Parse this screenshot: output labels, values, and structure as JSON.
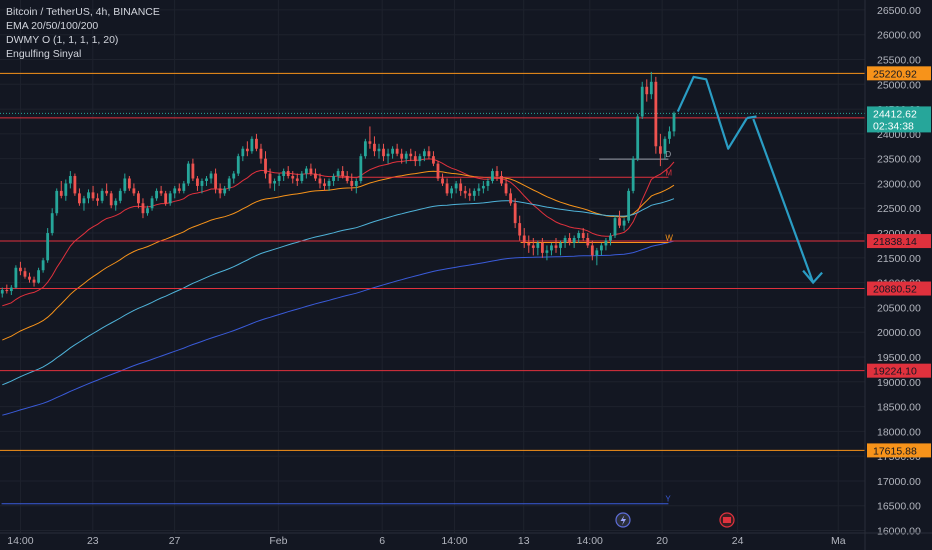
{
  "legend": {
    "symbol": "Bitcoin / TetherUS, 4h, BINANCE",
    "ema": "EMA 20/50/100/200",
    "dwmy": "DWMY O (1, 1, 1, 1, 20)",
    "engulfing": "Engulfing Sinyal"
  },
  "colors": {
    "background": "#131722",
    "up": "#26a69a",
    "down": "#ef5350",
    "orange": "#f7931a",
    "red_line": "#e0313d",
    "blue_line": "#3a5bd9",
    "current_price": "#26a69a",
    "arrow": "#2a9dc4"
  },
  "chart_data": {
    "type": "candlestick",
    "y_range": [
      15950,
      26700
    ],
    "y_ticks": [
      16000,
      16500,
      17000,
      17500,
      18000,
      18500,
      19000,
      19500,
      20000,
      20500,
      21000,
      21500,
      22000,
      22500,
      23000,
      23500,
      24000,
      24500,
      25000,
      25500,
      26000,
      26500
    ],
    "y_tick_labels": [
      "16000.00",
      "16500.00",
      "17000.00",
      "17500.00",
      "18000.00",
      "18500.00",
      "19000.00",
      "19500.00",
      "20000.00",
      "20500.00",
      "21000.00",
      "21500.00",
      "22000.00",
      "22500.00",
      "23000.00",
      "23500.00",
      "24000.00",
      "24500.00",
      "25000.00",
      "25500.00",
      "26000.00",
      "26500.00"
    ],
    "x_labels": [
      {
        "label": "14:00",
        "bar": 6
      },
      {
        "label": "23",
        "bar": 29
      },
      {
        "label": "27",
        "bar": 55
      },
      {
        "label": "Feb",
        "bar": 88
      },
      {
        "label": "6",
        "bar": 121
      },
      {
        "label": "14:00",
        "bar": 144
      },
      {
        "label": "13",
        "bar": 166
      },
      {
        "label": "14:00",
        "bar": 187
      },
      {
        "label": "20",
        "bar": 210
      },
      {
        "label": "24",
        "bar": 234
      },
      {
        "label": "Ma",
        "bar": 266
      }
    ],
    "bar_count_visible": 275,
    "support_resistance": [
      {
        "price": 25220.92,
        "label": "25220.92",
        "color": "#f7931a"
      },
      {
        "price": 24322.78,
        "label": "24322.78",
        "color": "#e0313d"
      },
      {
        "price": 21838.14,
        "label": "21838.14",
        "color": "#e0313d"
      },
      {
        "price": 20880.52,
        "label": "20880.52",
        "color": "#e0313d"
      },
      {
        "price": 19224.1,
        "label": "19224.10",
        "color": "#e0313d"
      },
      {
        "price": 17615.88,
        "label": "17615.88",
        "color": "#f7931a"
      }
    ],
    "current_price": {
      "price": 24412.62,
      "label": "24412.62",
      "countdown": "02:34:38"
    },
    "dwmy_levels": [
      {
        "tag": "D",
        "price": 23490,
        "from_bar": 190,
        "to_bar": 212,
        "color": "#9aa0aa"
      },
      {
        "tag": "M",
        "price": 23125,
        "from_bar": 107,
        "to_bar": 212,
        "color": "#e0313d"
      },
      {
        "tag": "W",
        "price": 21810,
        "from_bar": 165,
        "to_bar": 212,
        "color": "#f7931a"
      },
      {
        "tag": "Y",
        "price": 16540,
        "from_bar": 0,
        "to_bar": 212,
        "color": "#3a5bd9"
      }
    ],
    "candles_ohlc": [
      [
        20780,
        20900,
        20700,
        20850
      ],
      [
        20850,
        20960,
        20780,
        20830
      ],
      [
        20830,
        20950,
        20750,
        20900
      ],
      [
        20900,
        21350,
        20880,
        21300
      ],
      [
        21300,
        21420,
        21150,
        21230
      ],
      [
        21230,
        21300,
        21080,
        21120
      ],
      [
        21120,
        21200,
        21000,
        21060
      ],
      [
        21060,
        21120,
        20920,
        21000
      ],
      [
        21000,
        21300,
        20980,
        21250
      ],
      [
        21250,
        21500,
        21200,
        21450
      ],
      [
        21450,
        22100,
        21400,
        22000
      ],
      [
        22000,
        22500,
        21950,
        22400
      ],
      [
        22400,
        22900,
        22350,
        22850
      ],
      [
        22850,
        23050,
        22700,
        22750
      ],
      [
        22750,
        23080,
        22650,
        23000
      ],
      [
        23000,
        23250,
        22900,
        23150
      ],
      [
        23150,
        23200,
        22750,
        22800
      ],
      [
        22800,
        22900,
        22550,
        22600
      ],
      [
        22600,
        22750,
        22450,
        22700
      ],
      [
        22700,
        22880,
        22600,
        22820
      ],
      [
        22820,
        22950,
        22650,
        22700
      ],
      [
        22700,
        22800,
        22550,
        22650
      ],
      [
        22650,
        22900,
        22600,
        22850
      ],
      [
        22850,
        23000,
        22750,
        22800
      ],
      [
        22800,
        22850,
        22500,
        22560
      ],
      [
        22560,
        22700,
        22450,
        22650
      ],
      [
        22650,
        22900,
        22600,
        22850
      ],
      [
        22850,
        23200,
        22800,
        23100
      ],
      [
        23100,
        23150,
        22850,
        22900
      ],
      [
        22900,
        23000,
        22750,
        22800
      ],
      [
        22800,
        22850,
        22500,
        22600
      ],
      [
        22600,
        22700,
        22300,
        22400
      ],
      [
        22400,
        22550,
        22350,
        22500
      ],
      [
        22500,
        22750,
        22450,
        22700
      ],
      [
        22700,
        22900,
        22650,
        22850
      ],
      [
        22850,
        22950,
        22750,
        22800
      ],
      [
        22800,
        22850,
        22550,
        22600
      ],
      [
        22600,
        22850,
        22550,
        22800
      ],
      [
        22800,
        22950,
        22700,
        22900
      ],
      [
        22900,
        23000,
        22800,
        22850
      ],
      [
        22850,
        23050,
        22800,
        23000
      ],
      [
        23000,
        23450,
        22950,
        23400
      ],
      [
        23400,
        23500,
        23050,
        23100
      ],
      [
        23100,
        23150,
        22850,
        22950
      ],
      [
        22950,
        23100,
        22800,
        23050
      ],
      [
        23050,
        23150,
        22950,
        23100
      ],
      [
        23100,
        23250,
        23000,
        23200
      ],
      [
        23200,
        23300,
        22800,
        22900
      ],
      [
        22900,
        23000,
        22700,
        22800
      ],
      [
        22800,
        22950,
        22750,
        22900
      ],
      [
        22900,
        23150,
        22850,
        23100
      ],
      [
        23100,
        23250,
        23000,
        23200
      ],
      [
        23200,
        23600,
        23150,
        23550
      ],
      [
        23550,
        23750,
        23450,
        23700
      ],
      [
        23700,
        23850,
        23550,
        23650
      ],
      [
        23650,
        23950,
        23600,
        23900
      ],
      [
        23900,
        24000,
        23650,
        23700
      ],
      [
        23700,
        23800,
        23400,
        23500
      ],
      [
        23500,
        23650,
        23100,
        23200
      ],
      [
        23200,
        23300,
        22900,
        23000
      ],
      [
        23000,
        23100,
        22850,
        23050
      ],
      [
        23050,
        23200,
        22950,
        23150
      ],
      [
        23150,
        23300,
        23050,
        23250
      ],
      [
        23250,
        23350,
        23100,
        23150
      ],
      [
        23150,
        23250,
        23000,
        23100
      ],
      [
        23100,
        23200,
        22950,
        23050
      ],
      [
        23050,
        23250,
        23000,
        23200
      ],
      [
        23200,
        23350,
        23100,
        23300
      ],
      [
        23300,
        23400,
        23150,
        23200
      ],
      [
        23200,
        23300,
        23050,
        23100
      ],
      [
        23100,
        23200,
        22900,
        23000
      ],
      [
        23000,
        23100,
        22850,
        22950
      ],
      [
        22950,
        23100,
        22850,
        23050
      ],
      [
        23050,
        23200,
        22950,
        23150
      ],
      [
        23150,
        23300,
        23050,
        23250
      ],
      [
        23250,
        23350,
        23100,
        23150
      ],
      [
        23150,
        23250,
        23000,
        23050
      ],
      [
        23050,
        23200,
        22850,
        22950
      ],
      [
        22950,
        23100,
        22800,
        23050
      ],
      [
        23050,
        23600,
        23000,
        23550
      ],
      [
        23550,
        23900,
        23500,
        23850
      ],
      [
        23850,
        24150,
        23700,
        23800
      ],
      [
        23800,
        23950,
        23550,
        23650
      ],
      [
        23650,
        23800,
        23500,
        23700
      ],
      [
        23700,
        23800,
        23450,
        23550
      ],
      [
        23550,
        23700,
        23400,
        23600
      ],
      [
        23600,
        23750,
        23500,
        23700
      ],
      [
        23700,
        23800,
        23550,
        23600
      ],
      [
        23600,
        23700,
        23400,
        23500
      ],
      [
        23500,
        23650,
        23400,
        23600
      ],
      [
        23600,
        23700,
        23450,
        23550
      ],
      [
        23550,
        23650,
        23350,
        23450
      ],
      [
        23450,
        23600,
        23350,
        23550
      ],
      [
        23550,
        23700,
        23450,
        23650
      ],
      [
        23650,
        23750,
        23500,
        23550
      ],
      [
        23550,
        23650,
        23350,
        23400
      ],
      [
        23400,
        23450,
        23050,
        23100
      ],
      [
        23100,
        23200,
        22950,
        23000
      ],
      [
        23000,
        23100,
        22750,
        22800
      ],
      [
        22800,
        22950,
        22700,
        22900
      ],
      [
        22900,
        23050,
        22800,
        23000
      ],
      [
        23000,
        23100,
        22750,
        22850
      ],
      [
        22850,
        22950,
        22700,
        22800
      ],
      [
        22800,
        22900,
        22650,
        22750
      ],
      [
        22750,
        22900,
        22650,
        22850
      ],
      [
        22850,
        23000,
        22750,
        22900
      ],
      [
        22900,
        23050,
        22800,
        22950
      ],
      [
        22950,
        23100,
        22850,
        23050
      ],
      [
        23050,
        23300,
        23000,
        23250
      ],
      [
        23250,
        23350,
        23050,
        23150
      ],
      [
        23150,
        23250,
        22950,
        23000
      ],
      [
        23000,
        23100,
        22750,
        22800
      ],
      [
        22800,
        22900,
        22550,
        22600
      ],
      [
        22600,
        22700,
        22100,
        22200
      ],
      [
        22200,
        22350,
        21850,
        21950
      ],
      [
        21950,
        22100,
        21700,
        21800
      ],
      [
        21800,
        21950,
        21600,
        21750
      ],
      [
        21750,
        21900,
        21550,
        21700
      ],
      [
        21700,
        21850,
        21550,
        21800
      ],
      [
        21800,
        21900,
        21500,
        21600
      ],
      [
        21600,
        21750,
        21450,
        21650
      ],
      [
        21650,
        21800,
        21550,
        21750
      ],
      [
        21750,
        21900,
        21600,
        21700
      ],
      [
        21700,
        21850,
        21550,
        21800
      ],
      [
        21800,
        21950,
        21700,
        21900
      ],
      [
        21900,
        22000,
        21750,
        21800
      ],
      [
        21800,
        21950,
        21700,
        21900
      ],
      [
        21900,
        22050,
        21800,
        22000
      ],
      [
        22000,
        22100,
        21850,
        21900
      ],
      [
        21900,
        22000,
        21700,
        21750
      ],
      [
        21750,
        21850,
        21450,
        21550
      ],
      [
        21550,
        21700,
        21350,
        21650
      ],
      [
        21650,
        21800,
        21550,
        21750
      ],
      [
        21750,
        21900,
        21650,
        21850
      ],
      [
        21850,
        22000,
        21750,
        21950
      ],
      [
        21950,
        22350,
        21900,
        22300
      ],
      [
        22300,
        22450,
        22100,
        22150
      ],
      [
        22150,
        22300,
        22050,
        22250
      ],
      [
        22250,
        22900,
        22200,
        22850
      ],
      [
        22850,
        23550,
        22800,
        23500
      ],
      [
        23500,
        24400,
        23450,
        24350
      ],
      [
        24350,
        25050,
        24300,
        24950
      ],
      [
        24950,
        25100,
        24650,
        24800
      ],
      [
        24800,
        25250,
        24700,
        25050
      ],
      [
        25050,
        25150,
        23600,
        23750
      ],
      [
        23750,
        24000,
        23350,
        23600
      ],
      [
        23600,
        23950,
        23500,
        23900
      ],
      [
        23900,
        24150,
        23800,
        24050
      ],
      [
        24050,
        24450,
        23950,
        24412.62
      ]
    ],
    "arrow_path_prices": [
      {
        "bar": 215,
        "price": 24450
      },
      {
        "bar": 220,
        "price": 25150
      },
      {
        "bar": 224,
        "price": 25100
      },
      {
        "bar": 231,
        "price": 23700
      },
      {
        "bar": 237,
        "price": 24320
      },
      {
        "bar": 240,
        "price": 24350
      },
      {
        "bar": 239,
        "price": 24300
      },
      {
        "bar": 258,
        "price": 21000
      }
    ]
  }
}
